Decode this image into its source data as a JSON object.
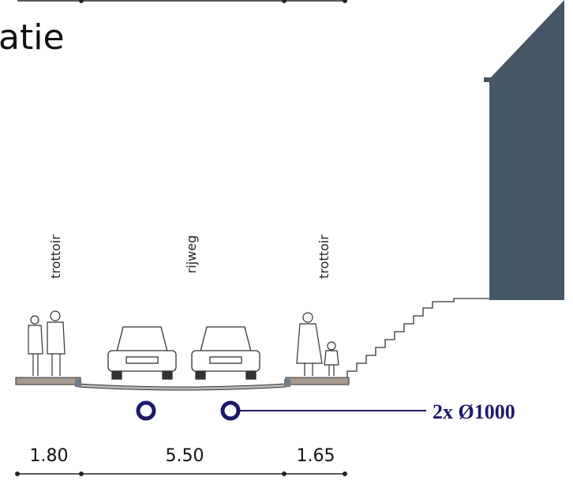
{
  "title": "atie",
  "labels": [
    "trottoir",
    "rijweg",
    "trottoir"
  ],
  "pipe_label": "2x Ø1000",
  "dimensions": [
    "1.80",
    "5.50",
    "1.65"
  ]
}
